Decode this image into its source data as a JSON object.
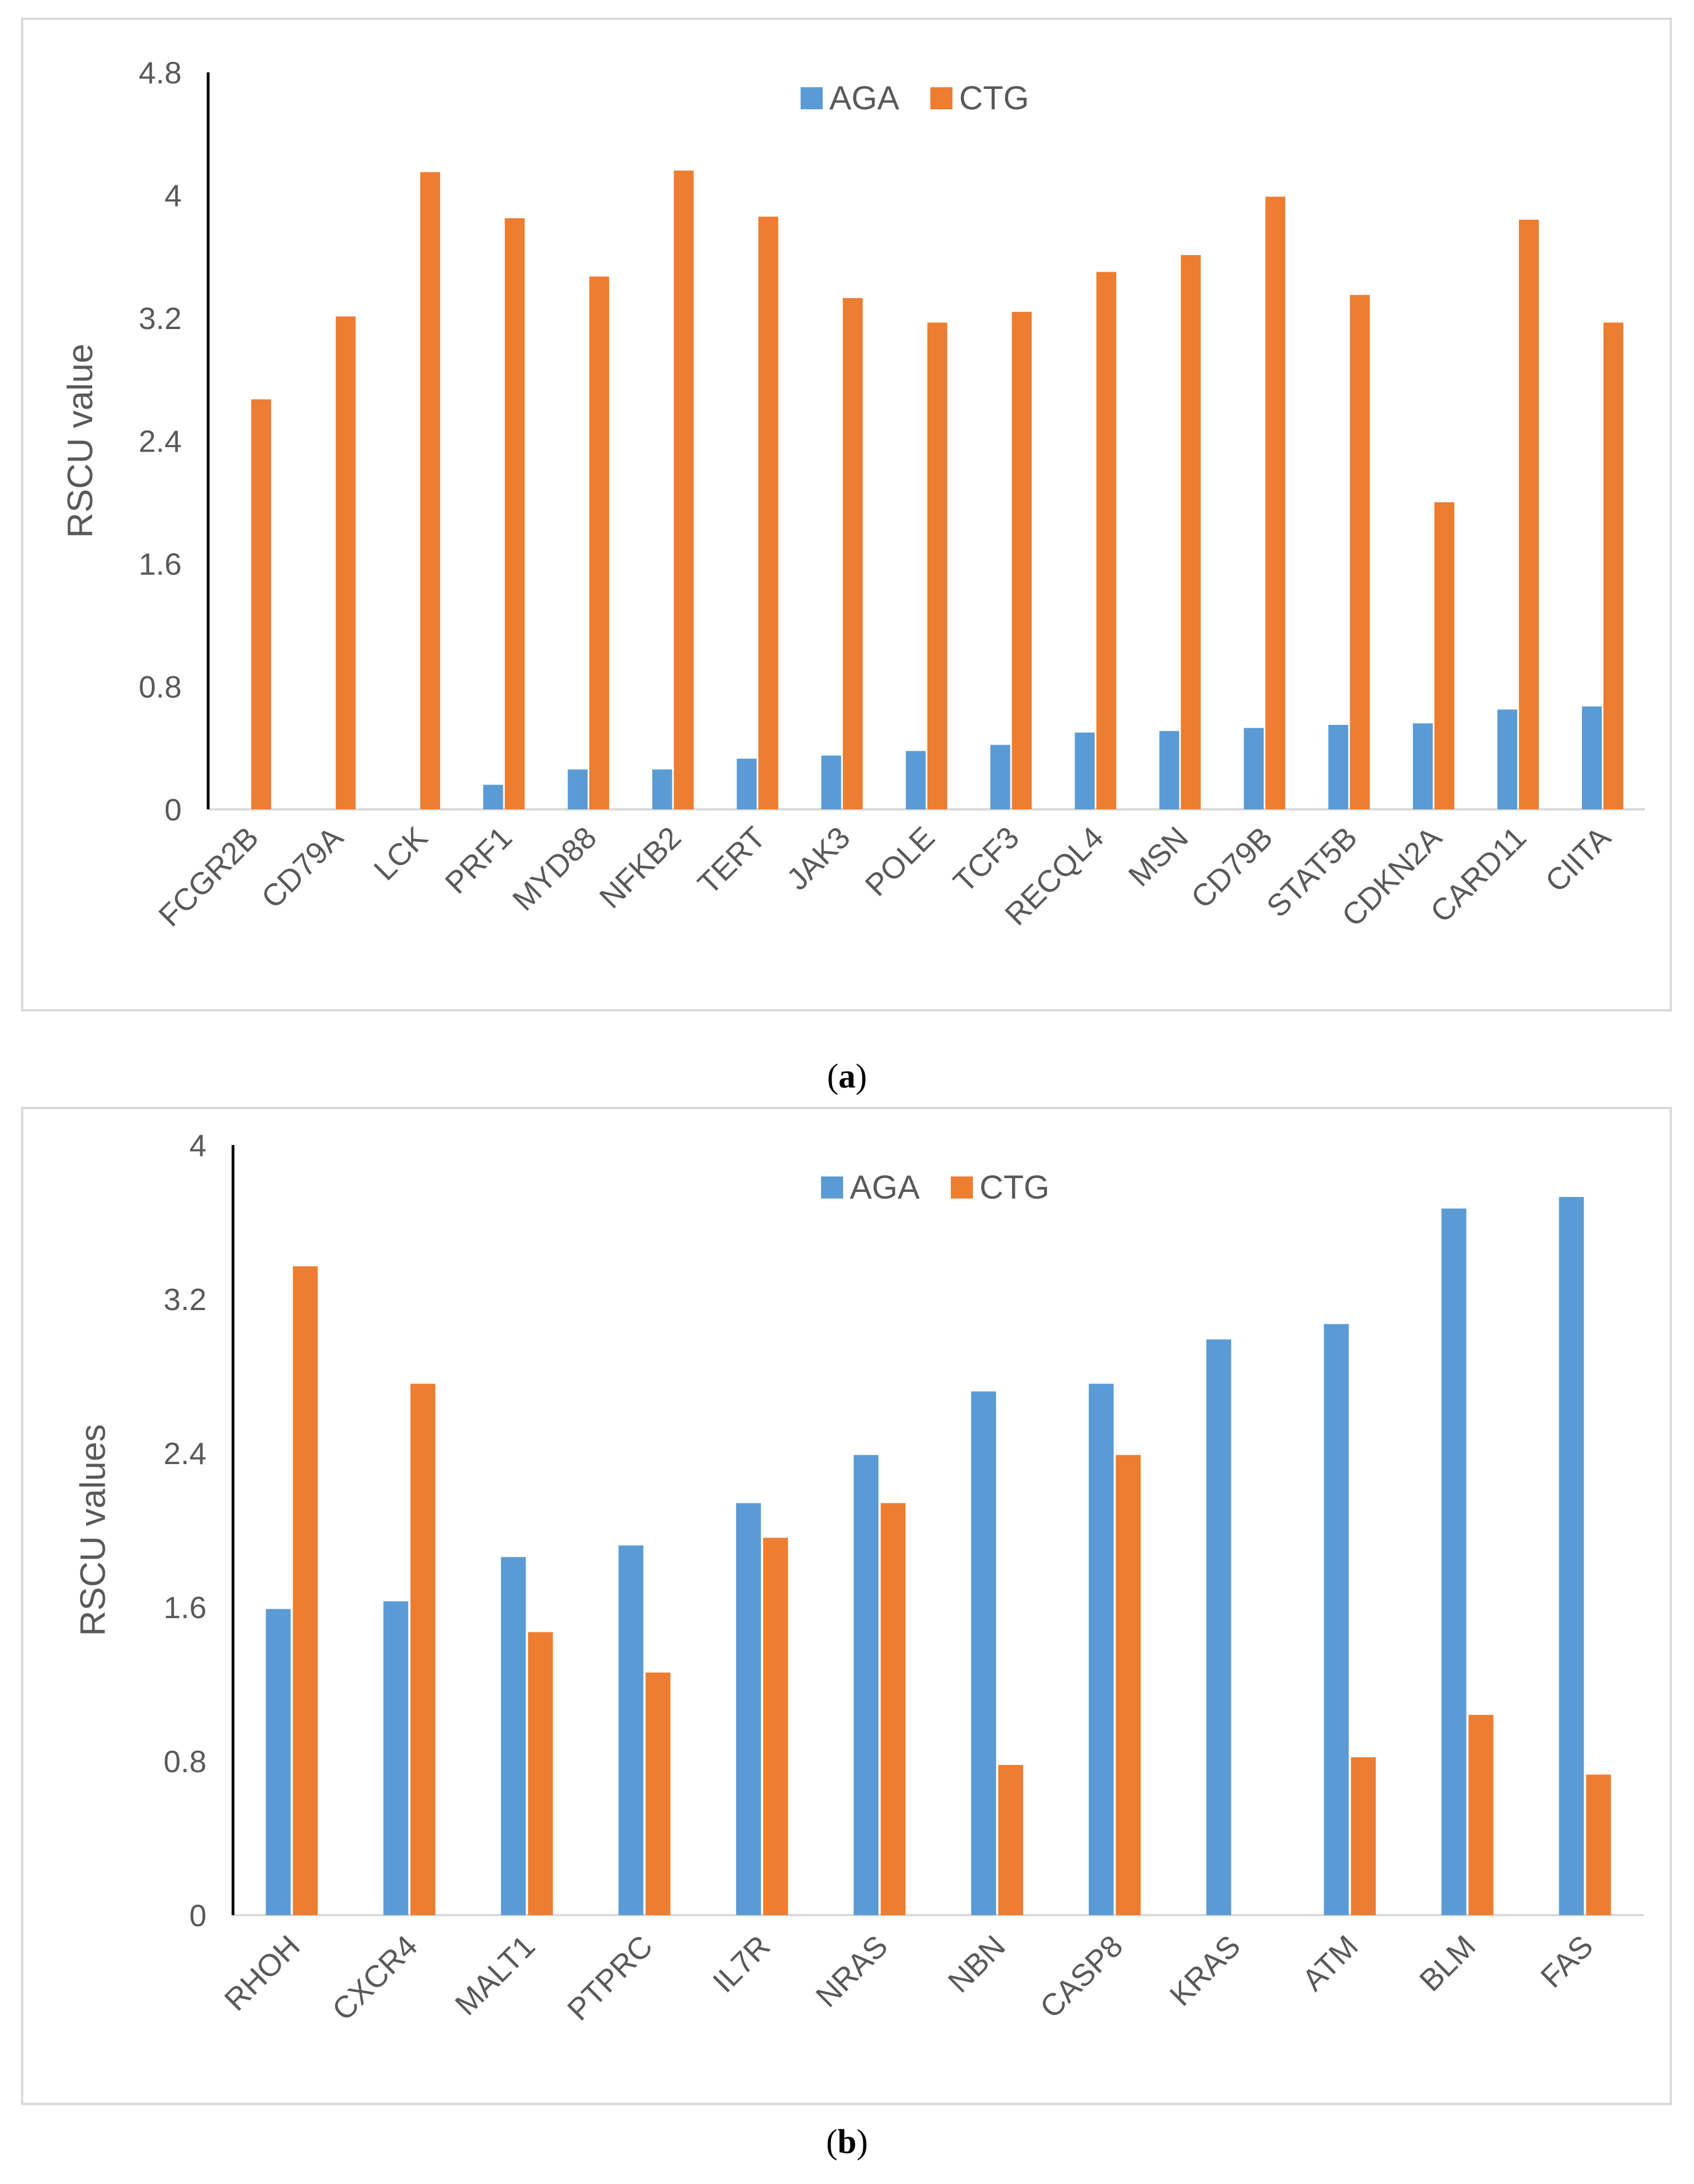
{
  "colors": {
    "aga": "#5b9bd5",
    "ctg": "#ed7d31",
    "axis": "#000000",
    "baseline": "#d9d9d9",
    "text": "#595959"
  },
  "chart_data": [
    {
      "id": "a",
      "type": "bar",
      "caption_letter": "a",
      "ylabel": "RSCU value",
      "ylim": [
        0,
        4.8
      ],
      "yticks": [
        "0",
        "0.8",
        "1.6",
        "2.4",
        "3.2",
        "4",
        "4.8"
      ],
      "legend_position": "top-center",
      "categories": [
        "FCGR2B",
        "CD79A",
        "LCK",
        "PRF1",
        "MYD88",
        "NFKB2",
        "TERT",
        "JAK3",
        "POLE",
        "TCF3",
        "RECQL4",
        "MSN",
        "CD79B",
        "STAT5B",
        "CDKN2A",
        "CARD11",
        "CIITA"
      ],
      "series": [
        {
          "name": "AGA",
          "color": "#5b9bd5",
          "values": [
            0,
            0,
            0,
            0.16,
            0.26,
            0.26,
            0.33,
            0.35,
            0.38,
            0.42,
            0.5,
            0.51,
            0.53,
            0.55,
            0.56,
            0.65,
            0.67
          ]
        },
        {
          "name": "CTG",
          "color": "#ed7d31",
          "values": [
            2.67,
            3.21,
            4.15,
            3.85,
            3.47,
            4.16,
            3.86,
            3.33,
            3.17,
            3.24,
            3.5,
            3.61,
            3.99,
            3.35,
            2.0,
            3.84,
            3.17
          ]
        }
      ]
    },
    {
      "id": "b",
      "type": "bar",
      "caption_letter": "b",
      "ylabel": "RSCU values",
      "ylim": [
        0,
        4
      ],
      "yticks": [
        "0",
        "0.8",
        "1.6",
        "2.4",
        "3.2",
        "4"
      ],
      "legend_position": "top-center",
      "categories": [
        "RHOH",
        "CXCR4",
        "MALT1",
        "PTPRC",
        "IL7R",
        "NRAS",
        "NBN",
        "CASP8",
        "KRAS",
        "ATM",
        "BLM",
        "FAS"
      ],
      "series": [
        {
          "name": "AGA",
          "color": "#5b9bd5",
          "values": [
            1.59,
            1.63,
            1.86,
            1.92,
            2.14,
            2.39,
            2.72,
            2.76,
            2.99,
            3.07,
            3.67,
            3.73
          ]
        },
        {
          "name": "CTG",
          "color": "#ed7d31",
          "values": [
            3.37,
            2.76,
            1.47,
            1.26,
            1.96,
            2.14,
            0.78,
            2.39,
            0,
            0.82,
            1.04,
            0.73
          ]
        }
      ]
    }
  ]
}
